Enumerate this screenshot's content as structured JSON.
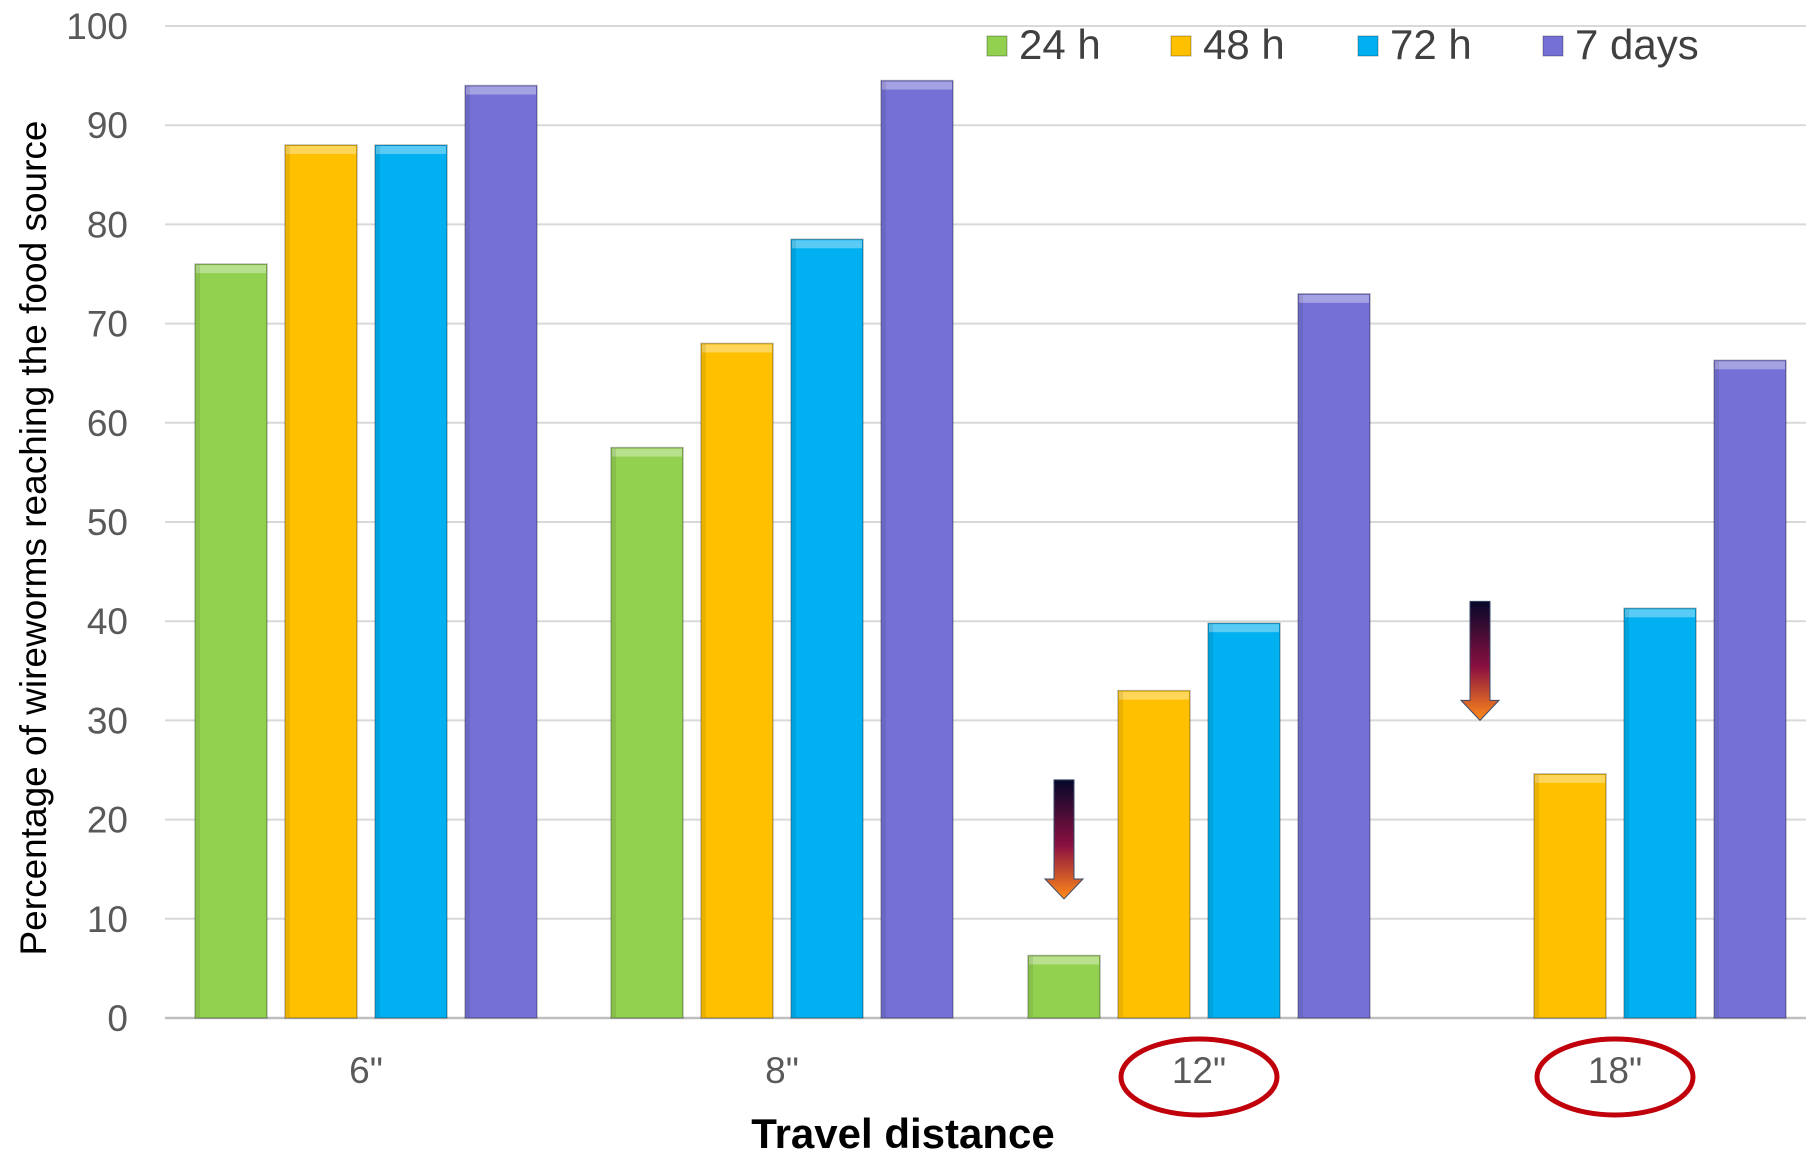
{
  "chart_data": {
    "type": "bar",
    "title": "",
    "xlabel": "Travel distance",
    "ylabel": "Percentage of wireworms reaching the  food source",
    "ylim": [
      0,
      100
    ],
    "yticks": [
      0,
      10,
      20,
      30,
      40,
      50,
      60,
      70,
      80,
      90,
      100
    ],
    "grid": true,
    "legend_position": "top-right",
    "categories": [
      "6\"",
      "8\"",
      "12\"",
      "18\""
    ],
    "highlighted_categories": [
      "12\"",
      "18\""
    ],
    "series": [
      {
        "name": "24 h",
        "color": "#92d050",
        "values": [
          76,
          57.5,
          6.3,
          null
        ]
      },
      {
        "name": "48 h",
        "color": "#ffc000",
        "values": [
          88,
          68,
          33,
          24.6
        ]
      },
      {
        "name": "72 h",
        "color": "#00b0f0",
        "values": [
          88,
          78.5,
          39.8,
          41.3
        ]
      },
      {
        "name": "7 days",
        "color": "#7570d6",
        "values": [
          94,
          94.5,
          73,
          66.3
        ]
      }
    ],
    "annotations": [
      {
        "type": "down-arrow",
        "category": "12\"",
        "series": "24 h",
        "from_value": 24,
        "to_value": 12
      },
      {
        "type": "down-arrow",
        "category": "18\"",
        "series": "24 h",
        "from_value": 42,
        "to_value": 30
      }
    ],
    "highlight_color": "#c0000b"
  }
}
